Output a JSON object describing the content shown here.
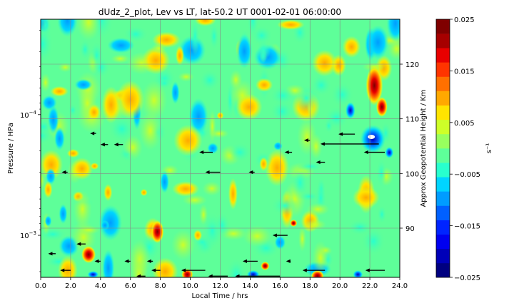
{
  "chart_data": {
    "type": "heatmap",
    "title": "dUdz_2_plot, Lev vs LT, lat-50.2 UT 0001-02-01 06:00:00",
    "xlabel": "Local Time / hrs",
    "ylabel": "Pressure / HPa",
    "y2label": "Approx Geopotential Height / Km",
    "colorbar_label": "s⁻¹",
    "x_ticks": [
      "0.0",
      "2.0",
      "4.0",
      "6.0",
      "8.0",
      "10.0",
      "12.0",
      "14.0",
      "16.0",
      "18.0",
      "20.0",
      "22.0",
      "24.0"
    ],
    "xlim": [
      0,
      24
    ],
    "y_scale": "log",
    "y_inverted": true,
    "ylim": [
      0.00223,
      1.62e-05
    ],
    "y_ticks": [
      {
        "value": 0.0001,
        "mantissa": "10",
        "exp": "−4"
      },
      {
        "value": 0.001,
        "mantissa": "10",
        "exp": "−3"
      }
    ],
    "y2_ticks": [
      {
        "label": "90",
        "value": 90
      },
      {
        "label": "100",
        "value": 100
      },
      {
        "label": "110",
        "value": 110
      },
      {
        "label": "120",
        "value": 120
      }
    ],
    "grid": true,
    "colorbar": {
      "min": -0.025,
      "max": 0.025,
      "ticks": [
        "0.025",
        "0.015",
        "0.005",
        "−0.005",
        "−0.015",
        "−0.025"
      ],
      "colors": [
        "#000080",
        "#0000b8",
        "#0000f0",
        "#0024ff",
        "#0060ff",
        "#009cff",
        "#00d4ff",
        "#28ffce",
        "#5eff99",
        "#98ff5e",
        "#ceff28",
        "#ffe400",
        "#ffa800",
        "#ff7000",
        "#ff3400",
        "#e80000",
        "#a60000",
        "#7f0000"
      ]
    },
    "arrows": [
      {
        "x": 22.6,
        "y": 0.000175,
        "dx": -3.9
      },
      {
        "x": 23.0,
        "y": 0.000205,
        "dx": -1.4
      },
      {
        "x": 21.0,
        "y": 0.000145,
        "dx": -1.1
      },
      {
        "x": 18.0,
        "y": 0.000163,
        "dx": -0.4
      },
      {
        "x": 16.8,
        "y": 0.000205,
        "dx": -0.5
      },
      {
        "x": 19.0,
        "y": 0.000248,
        "dx": -0.6
      },
      {
        "x": 11.5,
        "y": 0.000205,
        "dx": -0.9
      },
      {
        "x": 12.0,
        "y": 0.0003,
        "dx": -1.0
      },
      {
        "x": 4.5,
        "y": 0.000177,
        "dx": -0.5
      },
      {
        "x": 5.5,
        "y": 0.000177,
        "dx": -0.6
      },
      {
        "x": 3.7,
        "y": 0.000143,
        "dx": -0.4
      },
      {
        "x": 14.3,
        "y": 0.0003,
        "dx": -0.4
      },
      {
        "x": 1.8,
        "y": 0.0003,
        "dx": -0.4
      },
      {
        "x": 16.5,
        "y": 0.001,
        "dx": -1.0
      },
      {
        "x": 3.0,
        "y": 0.00118,
        "dx": -0.6
      },
      {
        "x": 1.0,
        "y": 0.00142,
        "dx": -0.5
      },
      {
        "x": 4.0,
        "y": 0.00164,
        "dx": -0.4
      },
      {
        "x": 6.0,
        "y": 0.00164,
        "dx": -0.4
      },
      {
        "x": 7.5,
        "y": 0.00164,
        "dx": -0.4
      },
      {
        "x": 14.5,
        "y": 0.00164,
        "dx": -1.0
      },
      {
        "x": 16.7,
        "y": 0.00164,
        "dx": -0.3
      },
      {
        "x": 2.0,
        "y": 0.00195,
        "dx": -0.7
      },
      {
        "x": 8.0,
        "y": 0.00195,
        "dx": -0.6
      },
      {
        "x": 11.0,
        "y": 0.00195,
        "dx": -1.6
      },
      {
        "x": 19.0,
        "y": 0.00195,
        "dx": -1.5
      },
      {
        "x": 23.0,
        "y": 0.00195,
        "dx": -1.3
      },
      {
        "x": 7.0,
        "y": 0.00218,
        "dx": -0.6
      },
      {
        "x": 12.5,
        "y": 0.00218,
        "dx": -1.3
      },
      {
        "x": 16.0,
        "y": 0.00218,
        "dx": -3.0
      }
    ]
  }
}
